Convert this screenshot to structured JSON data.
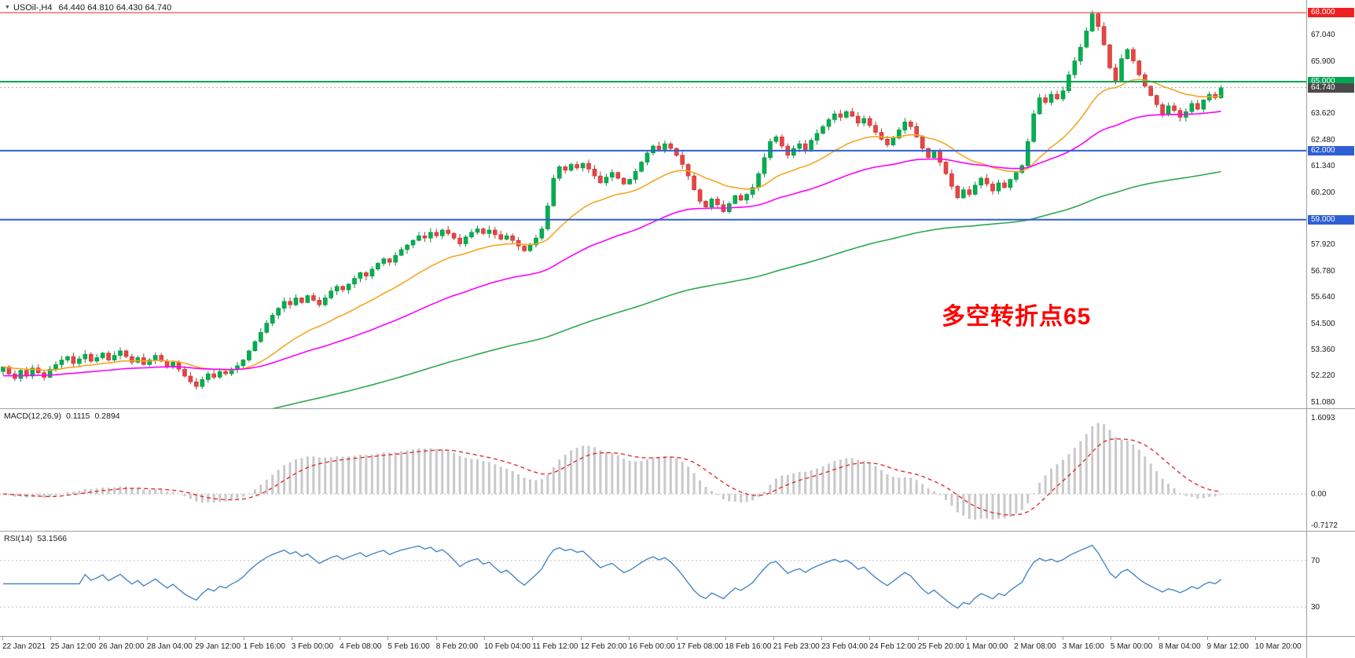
{
  "window": {
    "dropdown_icon": "▼",
    "symbol_label": "USOil-,H4",
    "ohlc_text": "64.440 64.810 64.430 64.740"
  },
  "main_chart": {
    "annotation": {
      "text": "多空转折点65",
      "color": "#FF0000"
    },
    "price_top": 68.55,
    "price_bottom": 50.8,
    "y_axis_labels": [
      "67.040",
      "65.900",
      "63.620",
      "62.480",
      "61.340",
      "60.200",
      "57.920",
      "56.780",
      "55.640",
      "54.500",
      "53.360",
      "52.220",
      "51.080"
    ],
    "badges": [
      {
        "label": "68.000",
        "bg": "#F02020"
      },
      {
        "label": "65.000",
        "bg": "#00A651"
      },
      {
        "label": "64.740",
        "bg": "#4A4A4A"
      },
      {
        "label": "62.000",
        "bg": "#2E5FD4"
      },
      {
        "label": "59.000",
        "bg": "#2E5FD4"
      }
    ]
  },
  "chart_data": {
    "type": "candlestick",
    "symbol": "USOil-",
    "timeframe": "H4",
    "current_bar": {
      "open": 64.44,
      "high": 64.81,
      "low": 64.43,
      "close": 64.74
    },
    "current_price": 64.74,
    "up_color": "#00B050",
    "up_edge": "#079040",
    "down_color": "#E84545",
    "down_edge": "#C23030",
    "hlines": [
      {
        "price": 68.0,
        "color": "#F02020",
        "width": 1
      },
      {
        "price": 65.0,
        "color": "#00A651",
        "width": 2
      },
      {
        "price": 62.0,
        "color": "#2E5FD4",
        "width": 2
      },
      {
        "price": 59.0,
        "color": "#2E5FD4",
        "width": 2
      }
    ],
    "overlays": [
      {
        "name": "ma-fast",
        "color": "#F5A623"
      },
      {
        "name": "ma-medium",
        "color": "#FF00FF"
      },
      {
        "name": "ma-slow",
        "color": "#2FA84F"
      }
    ],
    "x_labels": [
      "22 Jan 2021",
      "25 Jan 12:00",
      "26 Jan 20:00",
      "28 Jan 04:00",
      "29 Jan 12:00",
      "1 Feb 16:00",
      "3 Feb 00:00",
      "4 Feb 08:00",
      "5 Feb 16:00",
      "8 Feb 20:00",
      "10 Feb 04:00",
      "11 Feb 12:00",
      "12 Feb 20:00",
      "16 Feb 00:00",
      "17 Feb 08:00",
      "18 Feb 16:00",
      "21 Feb 23:00",
      "23 Feb 04:00",
      "24 Feb 12:00",
      "25 Feb 20:00",
      "1 Mar 00:00",
      "2 Mar 08:00",
      "3 Mar 16:00",
      "5 Mar 00:00",
      "8 Mar 04:00",
      "9 Mar 12:00",
      "10 Mar 20:00"
    ],
    "closes": [
      52.6,
      52.3,
      52.1,
      52.45,
      52.2,
      52.55,
      52.35,
      52.15,
      52.5,
      52.7,
      52.9,
      53.05,
      52.75,
      52.95,
      53.15,
      52.85,
      53.0,
      53.2,
      52.9,
      53.1,
      53.3,
      53.05,
      52.8,
      53.0,
      52.7,
      52.9,
      53.1,
      52.85,
      52.6,
      52.8,
      52.5,
      52.2,
      51.95,
      51.75,
      52.05,
      52.3,
      52.15,
      52.4,
      52.3,
      52.5,
      52.65,
      52.9,
      53.3,
      53.7,
      54.1,
      54.5,
      54.85,
      55.15,
      55.45,
      55.3,
      55.6,
      55.4,
      55.7,
      55.5,
      55.3,
      55.6,
      55.9,
      56.1,
      55.95,
      56.2,
      56.45,
      56.7,
      56.55,
      56.85,
      57.1,
      57.3,
      57.15,
      57.45,
      57.7,
      57.9,
      58.1,
      58.3,
      58.2,
      58.45,
      58.3,
      58.55,
      58.4,
      58.2,
      57.95,
      58.25,
      58.45,
      58.6,
      58.4,
      58.55,
      58.35,
      58.15,
      58.3,
      58.1,
      57.85,
      57.65,
      57.9,
      58.2,
      58.6,
      59.6,
      60.8,
      61.3,
      61.15,
      61.4,
      61.25,
      61.45,
      61.2,
      60.9,
      60.6,
      60.85,
      61.05,
      60.8,
      60.55,
      60.75,
      61.1,
      61.5,
      61.9,
      62.2,
      62.05,
      62.3,
      62.1,
      61.8,
      61.4,
      60.9,
      60.3,
      59.8,
      59.55,
      59.9,
      59.65,
      59.35,
      59.7,
      60.05,
      59.85,
      60.1,
      60.4,
      61.0,
      61.7,
      62.4,
      62.6,
      62.2,
      61.8,
      62.1,
      62.3,
      62.05,
      62.45,
      62.75,
      63.05,
      63.35,
      63.6,
      63.45,
      63.7,
      63.5,
      63.2,
      63.4,
      63.1,
      62.8,
      62.5,
      62.25,
      62.55,
      62.9,
      63.25,
      63.05,
      62.6,
      62.1,
      61.7,
      61.95,
      61.5,
      61.0,
      60.45,
      59.95,
      60.3,
      60.1,
      60.5,
      60.8,
      60.55,
      60.25,
      60.6,
      60.4,
      60.75,
      61.05,
      61.35,
      62.4,
      63.6,
      64.3,
      64.1,
      64.45,
      64.25,
      64.6,
      65.3,
      65.9,
      66.5,
      67.2,
      67.95,
      67.4,
      66.6,
      65.6,
      65.05,
      66.0,
      66.4,
      65.9,
      65.3,
      64.8,
      64.4,
      64.0,
      63.6,
      63.95,
      63.75,
      63.45,
      63.7,
      64.05,
      63.8,
      64.2,
      64.45,
      64.3,
      64.74
    ]
  },
  "macd": {
    "name_label": "MACD(12,26,9)",
    "value_main": "0.1115",
    "value_signal": "0.2894",
    "axis_labels": [
      "1.6093",
      "0.00",
      "-0.7172"
    ],
    "range_top": 1.8,
    "range_bottom": -0.78,
    "histogram_color": "#c9c9c9",
    "signal_color": "#E03030"
  },
  "rsi": {
    "name_label": "RSI(14)",
    "value": "53.1566",
    "axis_labels": [
      "70",
      "30"
    ],
    "range_top": 95,
    "range_bottom": 5,
    "line_color": "#4687C7"
  }
}
